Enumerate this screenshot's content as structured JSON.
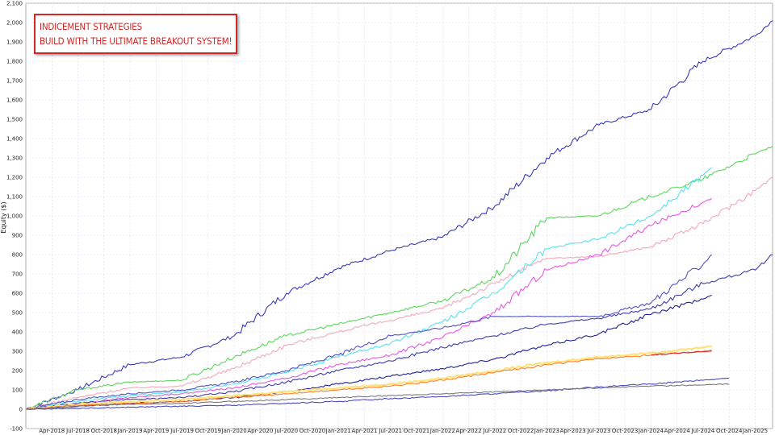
{
  "chart_data": {
    "type": "line",
    "title": "",
    "ylabel": "Equity ($)",
    "xlabel": "",
    "ylim": [
      -100,
      2100
    ],
    "yticks": [
      -100,
      0,
      100,
      200,
      300,
      400,
      500,
      600,
      700,
      800,
      900,
      1000,
      1100,
      1200,
      1300,
      1400,
      1500,
      1600,
      1700,
      1800,
      1900,
      2000,
      2100
    ],
    "ytick_labels": [
      "-100",
      "0",
      "100",
      "200",
      "300",
      "400",
      "500",
      "600",
      "700",
      "800",
      "900",
      "1,000",
      "1,100",
      "1,200",
      "1,300",
      "1,400",
      "1,500",
      "1,600",
      "1,700",
      "1,800",
      "1,900",
      "2,000",
      "2,100"
    ],
    "xlim": [
      "2018-01",
      "2025-03"
    ],
    "xtick_labels": [
      "Apr-2018",
      "Jul-2018",
      "Oct-2018",
      "Jan-2019",
      "Apr-2019",
      "Jul-2019",
      "Oct-2019",
      "Jan-2020",
      "Apr-2020",
      "Jul-2020",
      "Oct-2020",
      "Jan-2021",
      "Apr-2021",
      "Jul-2021",
      "Oct-2021",
      "Jan-2022",
      "Apr-2022",
      "Jul-2022",
      "Oct-2022",
      "Jan-2023",
      "Apr-2023",
      "Jul-2023",
      "Oct-2023",
      "Jan-2024",
      "Apr-2024",
      "Jul-2024",
      "Oct-2024",
      "Jan-2025"
    ],
    "xticks": [
      "2018-04",
      "2018-07",
      "2018-10",
      "2019-01",
      "2019-04",
      "2019-07",
      "2019-10",
      "2020-01",
      "2020-04",
      "2020-07",
      "2020-10",
      "2021-01",
      "2021-04",
      "2021-07",
      "2021-10",
      "2022-01",
      "2022-04",
      "2022-07",
      "2022-10",
      "2023-01",
      "2023-04",
      "2023-07",
      "2023-10",
      "2024-01",
      "2024-04",
      "2024-07",
      "2024-10",
      "2025-01"
    ],
    "grid": true,
    "legend": "none",
    "annotation": [
      "INDICEMENT STRATEGIES",
      "BUILD WITH THE ULTIMATE BREAKOUT SYSTEM!"
    ],
    "series": [
      {
        "color": "#3b3bb8",
        "x": [
          "2018-01",
          "2018-07",
          "2019-01",
          "2019-07",
          "2020-01",
          "2020-07",
          "2021-01",
          "2021-07",
          "2022-01",
          "2022-07",
          "2023-01",
          "2023-07",
          "2024-01",
          "2024-07",
          "2025-01",
          "2025-03"
        ],
        "y": [
          0,
          100,
          230,
          270,
          380,
          600,
          730,
          820,
          890,
          1050,
          1300,
          1470,
          1550,
          1800,
          1930,
          2010
        ]
      },
      {
        "color": "#5cd65c",
        "x": [
          "2018-01",
          "2018-07",
          "2019-01",
          "2019-07",
          "2020-01",
          "2020-07",
          "2021-01",
          "2021-07",
          "2022-01",
          "2022-07",
          "2023-01",
          "2023-07",
          "2024-01",
          "2024-07",
          "2025-01",
          "2025-03"
        ],
        "y": [
          0,
          100,
          140,
          150,
          270,
          380,
          440,
          500,
          560,
          680,
          990,
          1000,
          1100,
          1190,
          1320,
          1360
        ]
      },
      {
        "color": "#f4a8b8",
        "x": [
          "2018-01",
          "2018-07",
          "2019-01",
          "2019-07",
          "2020-01",
          "2020-07",
          "2021-01",
          "2021-07",
          "2022-01",
          "2022-07",
          "2023-01",
          "2023-07",
          "2024-01",
          "2024-07",
          "2025-01",
          "2025-03"
        ],
        "y": [
          0,
          60,
          110,
          120,
          210,
          330,
          400,
          460,
          520,
          650,
          780,
          790,
          840,
          960,
          1130,
          1200
        ]
      },
      {
        "color": "#55e4ee",
        "x": [
          "2018-01",
          "2018-07",
          "2019-01",
          "2019-07",
          "2020-01",
          "2020-07",
          "2021-01",
          "2021-07",
          "2022-01",
          "2022-07",
          "2023-01",
          "2023-07",
          "2024-01",
          "2024-07",
          "2024-08"
        ],
        "y": [
          0,
          40,
          70,
          90,
          130,
          190,
          270,
          340,
          450,
          600,
          830,
          880,
          1000,
          1210,
          1250
        ]
      },
      {
        "color": "#e858e0",
        "x": [
          "2018-01",
          "2018-07",
          "2019-01",
          "2019-07",
          "2020-01",
          "2020-07",
          "2021-01",
          "2021-07",
          "2022-01",
          "2022-07",
          "2023-01",
          "2023-07",
          "2024-01",
          "2024-07",
          "2024-08"
        ],
        "y": [
          0,
          30,
          60,
          80,
          110,
          160,
          230,
          280,
          370,
          500,
          720,
          800,
          950,
          1070,
          1090
        ]
      },
      {
        "color": "#5252c4",
        "x": [
          "2018-01",
          "2018-07",
          "2019-01",
          "2019-07",
          "2020-01",
          "2020-07",
          "2021-01",
          "2021-07",
          "2022-01",
          "2022-07",
          "2023-01",
          "2023-07",
          "2024-01",
          "2024-07",
          "2024-08"
        ],
        "y": [
          0,
          50,
          80,
          100,
          140,
          200,
          280,
          380,
          420,
          480,
          480,
          480,
          550,
          750,
          800
        ]
      },
      {
        "color": "#3d3db0",
        "x": [
          "2018-01",
          "2018-07",
          "2019-01",
          "2019-07",
          "2020-01",
          "2020-07",
          "2021-01",
          "2021-07",
          "2022-01",
          "2022-07",
          "2023-01",
          "2023-07",
          "2024-01",
          "2024-07",
          "2025-01",
          "2025-03"
        ],
        "y": [
          0,
          30,
          50,
          60,
          90,
          140,
          200,
          250,
          320,
          380,
          440,
          470,
          520,
          650,
          720,
          800
        ]
      },
      {
        "color": "#1f1f9a",
        "x": [
          "2018-01",
          "2018-07",
          "2019-01",
          "2019-07",
          "2020-01",
          "2020-07",
          "2021-01",
          "2021-07",
          "2022-01",
          "2022-07",
          "2023-01",
          "2023-07",
          "2024-01",
          "2024-07",
          "2024-08"
        ],
        "y": [
          0,
          15,
          30,
          40,
          60,
          90,
          130,
          170,
          210,
          260,
          330,
          390,
          490,
          570,
          590
        ]
      },
      {
        "color": "#ffe27a",
        "x": [
          "2018-01",
          "2018-07",
          "2019-01",
          "2019-07",
          "2020-01",
          "2020-07",
          "2021-01",
          "2021-07",
          "2022-01",
          "2022-07",
          "2023-01",
          "2023-07",
          "2024-01",
          "2024-07",
          "2024-08"
        ],
        "y": [
          0,
          25,
          40,
          50,
          70,
          90,
          110,
          130,
          160,
          200,
          240,
          270,
          290,
          320,
          325
        ]
      },
      {
        "color": "#ff7f2a",
        "x": [
          "2018-01",
          "2018-07",
          "2019-01",
          "2019-07",
          "2020-01",
          "2020-07",
          "2021-01",
          "2021-07",
          "2022-01",
          "2022-07",
          "2023-01",
          "2023-07",
          "2024-01",
          "2024-07",
          "2024-08"
        ],
        "y": [
          0,
          20,
          30,
          40,
          60,
          80,
          100,
          120,
          150,
          190,
          230,
          260,
          280,
          300,
          305
        ]
      },
      {
        "color": "#d92c2c",
        "x": [
          "2024-01",
          "2024-04",
          "2024-08"
        ],
        "y": [
          280,
          290,
          300
        ]
      },
      {
        "color": "#4b4bc2",
        "x": [
          "2018-01",
          "2018-07",
          "2019-01",
          "2019-07",
          "2020-01",
          "2020-07",
          "2021-01",
          "2021-07",
          "2022-01",
          "2022-07",
          "2023-01",
          "2023-07",
          "2024-01",
          "2024-07",
          "2024-10"
        ],
        "y": [
          0,
          5,
          10,
          15,
          20,
          30,
          40,
          55,
          65,
          80,
          95,
          115,
          130,
          150,
          160
        ]
      },
      {
        "color": "#7b7b7b",
        "x": [
          "2018-01",
          "2018-07",
          "2019-01",
          "2019-07",
          "2020-01",
          "2020-07",
          "2021-01",
          "2021-07",
          "2022-01",
          "2022-07",
          "2023-01",
          "2023-07",
          "2024-01",
          "2024-07",
          "2024-10"
        ],
        "y": [
          0,
          15,
          25,
          30,
          40,
          50,
          60,
          70,
          80,
          90,
          100,
          110,
          120,
          125,
          130
        ]
      }
    ]
  }
}
